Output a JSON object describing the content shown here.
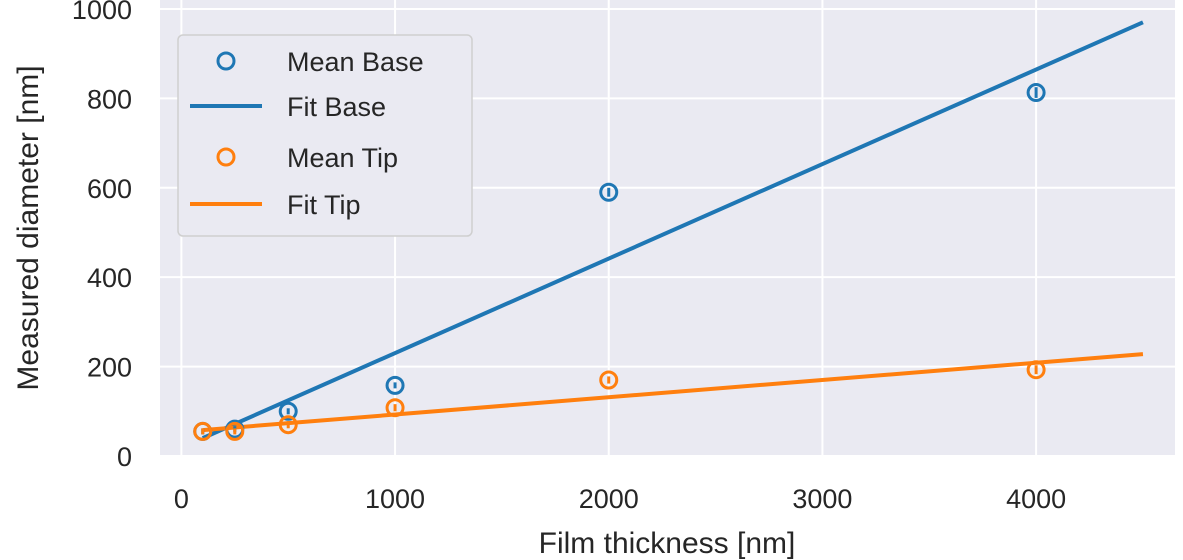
{
  "chart_data": {
    "type": "scatter",
    "xlabel": "Film thickness [nm]",
    "ylabel": "Measured diameter [nm]",
    "xlim": [
      -100,
      4650
    ],
    "ylim": [
      0,
      1020
    ],
    "xticks": [
      "0",
      "1000",
      "2000",
      "3000",
      "4000"
    ],
    "xtick_values": [
      0,
      1000,
      2000,
      3000,
      4000
    ],
    "yticks": [
      "0",
      "200",
      "400",
      "600",
      "800",
      "1000"
    ],
    "ytick_values": [
      0,
      200,
      400,
      600,
      800,
      1000
    ],
    "grid": true,
    "background": "#eaeaf2",
    "legend_position": "top-left",
    "series": [
      {
        "name": "Mean Base",
        "kind": "scatter",
        "color": "#1f77b4",
        "x": [
          100,
          250,
          500,
          1000,
          2000,
          4000
        ],
        "y": [
          55,
          60,
          100,
          158,
          590,
          813
        ],
        "yerr": [
          4,
          4,
          6,
          5,
          10,
          12
        ]
      },
      {
        "name": "Fit Base",
        "kind": "line",
        "color": "#1f77b4",
        "x": [
          100,
          4500
        ],
        "y": [
          40,
          970
        ]
      },
      {
        "name": "Mean Tip",
        "kind": "scatter",
        "color": "#ff7f0e",
        "x": [
          100,
          250,
          500,
          1000,
          2000,
          4000
        ],
        "y": [
          55,
          55,
          70,
          108,
          170,
          193
        ],
        "yerr": [
          4,
          4,
          8,
          8,
          8,
          10
        ]
      },
      {
        "name": "Fit Tip",
        "kind": "line",
        "color": "#ff7f0e",
        "x": [
          100,
          4500
        ],
        "y": [
          58,
          228
        ]
      }
    ]
  }
}
